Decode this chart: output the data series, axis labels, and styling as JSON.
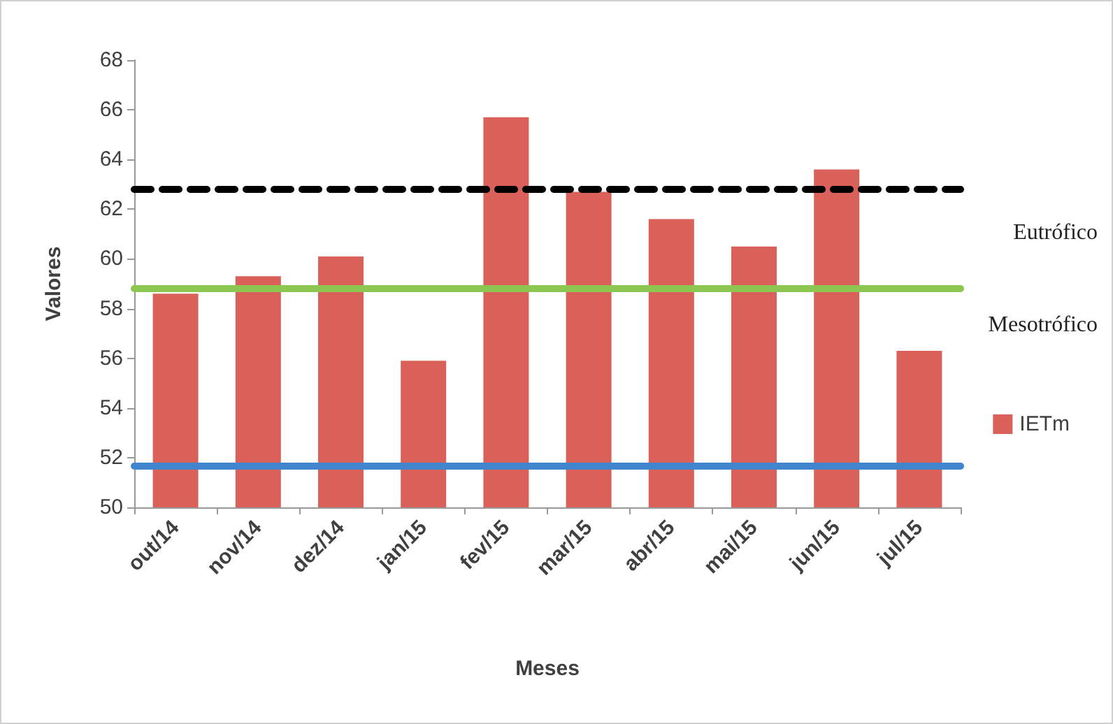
{
  "chart_data": {
    "type": "bar",
    "xlabel": "Meses",
    "ylabel": "Valores",
    "categories": [
      "out/14",
      "nov/14",
      "dez/14",
      "jan/15",
      "fev/15",
      "mar/15",
      "abr/15",
      "mai/15",
      "jun/15",
      "jul/15"
    ],
    "series": [
      {
        "name": "IETm",
        "color": "#d9615a",
        "values": [
          58.6,
          59.3,
          60.1,
          55.9,
          65.7,
          62.7,
          61.6,
          60.5,
          63.6,
          56.3
        ]
      }
    ],
    "ylim": [
      50,
      68
    ],
    "yticks": [
      50,
      52,
      54,
      56,
      58,
      60,
      62,
      64,
      66,
      68
    ],
    "ref_lines": [
      {
        "axis": "y",
        "value": 62.8,
        "color": "#000000",
        "line_style": "dashed"
      },
      {
        "axis": "y",
        "value": 58.8,
        "color": "#8cc751",
        "line_style": "solid"
      },
      {
        "axis": "y",
        "value": 51.7,
        "color": "#3f86cf",
        "line_style": "solid"
      }
    ],
    "annotations": [
      "Eutrófico",
      "Mesotrófico"
    ],
    "grid": false,
    "legend": "right"
  }
}
